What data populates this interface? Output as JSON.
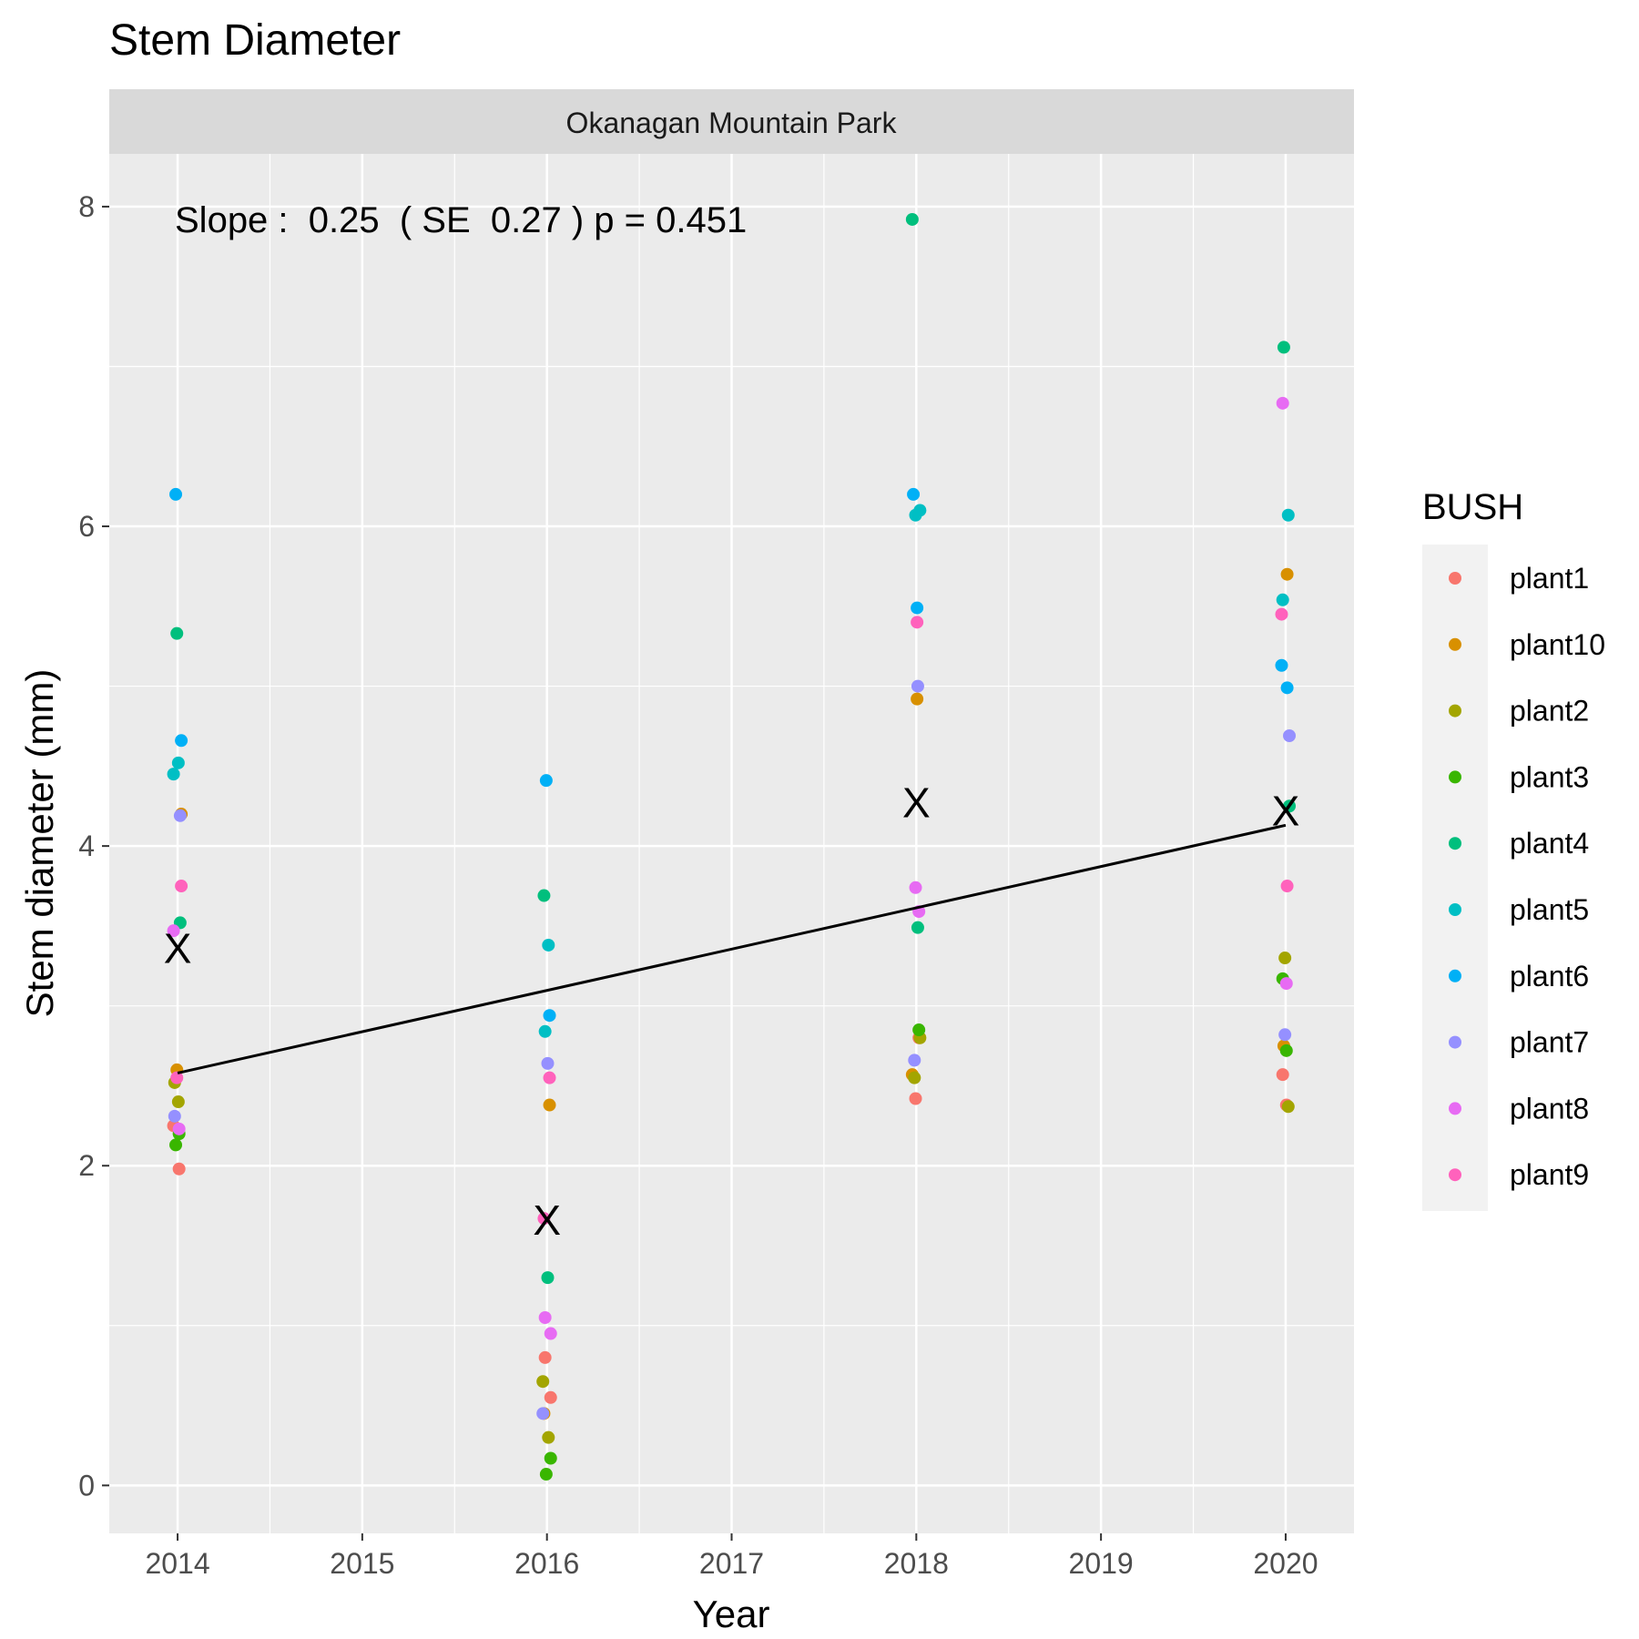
{
  "chart_data": {
    "type": "scatter",
    "title": "Stem Diameter",
    "facet_label": "Okanagan Mountain Park",
    "xlabel": "Year",
    "ylabel": "Stem diameter (mm)",
    "xlim": [
      2013.63,
      2020.37
    ],
    "ylim": [
      -0.3,
      8.33
    ],
    "x_ticks": [
      2014,
      2015,
      2016,
      2017,
      2018,
      2019,
      2020
    ],
    "x_tick_labels": [
      "2014",
      "2015",
      "2016",
      "2017",
      "2018",
      "2019",
      "2020"
    ],
    "y_ticks": [
      0,
      2,
      4,
      6,
      8
    ],
    "y_tick_labels": [
      "0",
      "2",
      "4",
      "6",
      "8"
    ],
    "grid": true,
    "annotation": "Slope :  0.25  ( SE  0.27 ) p = 0.451",
    "legend": {
      "title": "BUSH",
      "position": "right"
    },
    "series": [
      {
        "name": "plant1",
        "color": "#F8766D",
        "points": [
          [
            2014,
            2.25
          ],
          [
            2014,
            1.98
          ],
          [
            2016,
            0.8
          ],
          [
            2016,
            0.55
          ],
          [
            2018,
            2.42
          ],
          [
            2018,
            2.8
          ],
          [
            2020,
            2.57
          ],
          [
            2020,
            2.38
          ]
        ]
      },
      {
        "name": "plant10",
        "color": "#D89000",
        "points": [
          [
            2014,
            4.2
          ],
          [
            2014,
            2.6
          ],
          [
            2016,
            2.38
          ],
          [
            2016,
            0.45
          ],
          [
            2018,
            4.92
          ],
          [
            2018,
            2.57
          ],
          [
            2020,
            5.7
          ],
          [
            2020,
            2.75
          ]
        ]
      },
      {
        "name": "plant2",
        "color": "#A3A500",
        "points": [
          [
            2014,
            2.52
          ],
          [
            2014,
            2.4
          ],
          [
            2016,
            0.65
          ],
          [
            2016,
            0.3
          ],
          [
            2018,
            2.55
          ],
          [
            2018,
            2.8
          ],
          [
            2020,
            3.3
          ],
          [
            2020,
            2.37
          ]
        ]
      },
      {
        "name": "plant3",
        "color": "#39B600",
        "points": [
          [
            2014,
            2.2
          ],
          [
            2014,
            2.13
          ],
          [
            2016,
            0.17
          ],
          [
            2016,
            0.07
          ],
          [
            2018,
            2.85
          ],
          [
            2020,
            3.17
          ],
          [
            2020,
            2.72
          ]
        ]
      },
      {
        "name": "plant4",
        "color": "#00BF7D",
        "points": [
          [
            2014,
            5.33
          ],
          [
            2014,
            3.52
          ],
          [
            2016,
            3.69
          ],
          [
            2016,
            1.3
          ],
          [
            2018,
            7.92
          ],
          [
            2018,
            3.49
          ],
          [
            2020,
            7.12
          ],
          [
            2020,
            4.25
          ]
        ]
      },
      {
        "name": "plant5",
        "color": "#00BFC4",
        "points": [
          [
            2014,
            4.52
          ],
          [
            2014,
            4.45
          ],
          [
            2016,
            3.38
          ],
          [
            2016,
            2.84
          ],
          [
            2018,
            6.1
          ],
          [
            2018,
            6.07
          ],
          [
            2020,
            6.07
          ],
          [
            2020,
            5.54
          ]
        ]
      },
      {
        "name": "plant6",
        "color": "#00B0F6",
        "points": [
          [
            2014,
            6.2
          ],
          [
            2014,
            4.66
          ],
          [
            2016,
            4.41
          ],
          [
            2016,
            2.94
          ],
          [
            2018,
            6.2
          ],
          [
            2018,
            5.49
          ],
          [
            2020,
            5.13
          ],
          [
            2020,
            4.99
          ]
        ]
      },
      {
        "name": "plant7",
        "color": "#9590FF",
        "points": [
          [
            2014,
            4.19
          ],
          [
            2014,
            2.31
          ],
          [
            2016,
            2.64
          ],
          [
            2016,
            0.45
          ],
          [
            2018,
            5.0
          ],
          [
            2018,
            2.66
          ],
          [
            2020,
            4.69
          ],
          [
            2020,
            2.82
          ]
        ]
      },
      {
        "name": "plant8",
        "color": "#E76BF3",
        "points": [
          [
            2014,
            3.47
          ],
          [
            2014,
            2.23
          ],
          [
            2016,
            1.05
          ],
          [
            2016,
            0.95
          ],
          [
            2018,
            3.74
          ],
          [
            2018,
            3.59
          ],
          [
            2020,
            6.77
          ],
          [
            2020,
            3.14
          ]
        ]
      },
      {
        "name": "plant9",
        "color": "#FF62BC",
        "points": [
          [
            2014,
            3.75
          ],
          [
            2014,
            2.55
          ],
          [
            2016,
            2.55
          ],
          [
            2016,
            1.67
          ],
          [
            2018,
            5.4
          ],
          [
            2020,
            5.45
          ],
          [
            2020,
            3.75
          ]
        ]
      }
    ],
    "means": {
      "marker": "X",
      "points": [
        [
          2014,
          3.36
        ],
        [
          2016,
          1.66
        ],
        [
          2018,
          4.27
        ],
        [
          2020,
          4.22
        ]
      ]
    },
    "fit_line": {
      "x": [
        2014,
        2020
      ],
      "y": [
        2.58,
        4.13
      ]
    }
  }
}
